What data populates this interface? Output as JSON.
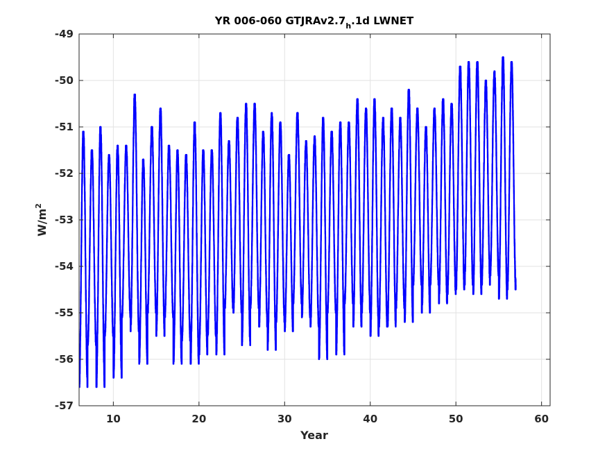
{
  "chart_data": {
    "type": "line",
    "title": {
      "main": "YR 006-060 GTJRAv2.7",
      "subscript": "h",
      "suffix": ".1d LWNET"
    },
    "xlabel": "Year",
    "ylabel": {
      "base": "W/m",
      "superscript": "2"
    },
    "xlim": [
      6,
      61
    ],
    "ylim": [
      -57,
      -49
    ],
    "xticks": [
      10,
      20,
      30,
      40,
      50,
      60
    ],
    "yticks": [
      -57,
      -56,
      -55,
      -54,
      -53,
      -52,
      -51,
      -50,
      -49
    ],
    "grid": true,
    "series": [
      {
        "color": "#0000ff",
        "annual_peaks": [
          -51.1,
          -51.5,
          -51.0,
          -51.6,
          -51.4,
          -51.4,
          -50.3,
          -51.7,
          -51.0,
          -50.6,
          -51.4,
          -51.5,
          -51.6,
          -50.9,
          -51.5,
          -51.5,
          -50.7,
          -51.3,
          -50.8,
          -50.5,
          -50.5,
          -51.1,
          -50.7,
          -50.9,
          -51.6,
          -50.7,
          -51.3,
          -51.2,
          -50.8,
          -51.1,
          -50.9,
          -50.9,
          -50.4,
          -50.6,
          -50.4,
          -50.8,
          -50.6,
          -50.8,
          -50.2,
          -50.6,
          -51.0,
          -50.6,
          -50.4,
          -50.5,
          -49.7,
          -49.6,
          -49.6,
          -50.0,
          -49.8,
          -49.5,
          -49.6
        ],
        "annual_troughs": [
          -56.6,
          -55.7,
          -56.6,
          -55.5,
          -56.4,
          -55.1,
          -55.4,
          -56.1,
          -55.0,
          -55.5,
          -55.1,
          -56.1,
          -55.6,
          -56.1,
          -55.9,
          -55.5,
          -55.9,
          -54.9,
          -55.0,
          -55.7,
          -54.9,
          -55.3,
          -55.8,
          -55.2,
          -55.4,
          -54.8,
          -55.1,
          -55.3,
          -56.0,
          -55.0,
          -55.9,
          -54.8,
          -55.3,
          -55.0,
          -55.5,
          -55.3,
          -55.3,
          -54.9,
          -55.2,
          -54.4,
          -55.0,
          -54.4,
          -54.8,
          -54.6,
          -54.5,
          -54.4,
          -54.6,
          -54.4,
          -54.2,
          -54.7,
          -54.5
        ]
      }
    ]
  }
}
